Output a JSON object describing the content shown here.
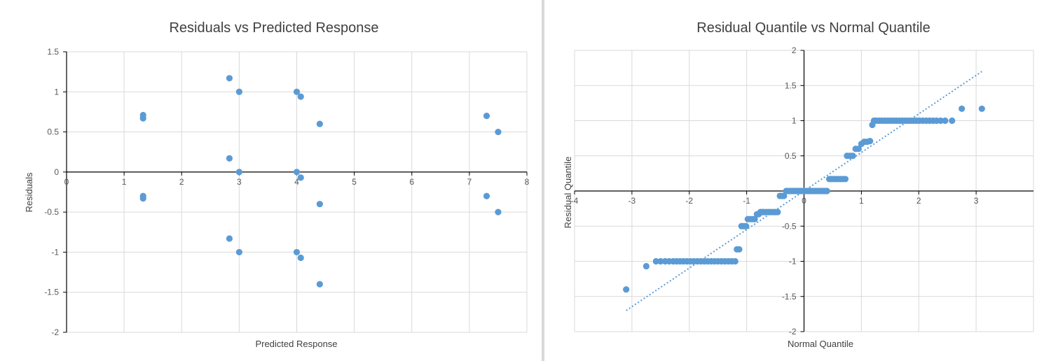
{
  "chart_data": [
    {
      "type": "scatter",
      "title": "Residuals vs Predicted Response",
      "xlabel": "Predicted Response",
      "ylabel": "Residuals",
      "xlim": [
        0,
        8
      ],
      "ylim": [
        -2,
        1.5
      ],
      "xticks": [
        0,
        1,
        2,
        3,
        4,
        5,
        6,
        7,
        8
      ],
      "yticks": [
        -2,
        -1.5,
        -1,
        -0.5,
        0,
        0.5,
        1,
        1.5
      ],
      "xtick_labels": [
        "0",
        "1",
        "2",
        "3",
        "4",
        "5",
        "6",
        "7",
        "8"
      ],
      "ytick_labels": [
        "-2",
        "-1.5",
        "-1",
        "-0.5",
        "0",
        "0.5",
        "1",
        "1.5"
      ],
      "grid": true,
      "legend": "none",
      "marker_color": "#5b9bd5",
      "series": [
        {
          "x": [
            1.33,
            1.33,
            1.33,
            1.33,
            2.83,
            2.83,
            2.83,
            3.0,
            3.0,
            3.0,
            4.0,
            4.0,
            4.0,
            4.07,
            4.07,
            4.07,
            4.4,
            4.4,
            4.4,
            7.3,
            7.3,
            7.5,
            7.5
          ],
          "y": [
            0.71,
            0.67,
            -0.3,
            -0.33,
            1.17,
            0.17,
            -0.83,
            1.0,
            0.0,
            -1.0,
            1.0,
            0.0,
            -1.0,
            0.94,
            -0.07,
            -1.07,
            0.6,
            -0.4,
            -1.4,
            0.7,
            -0.3,
            0.5,
            -0.5
          ]
        }
      ]
    },
    {
      "type": "scatter",
      "title": "Residual Quantile vs Normal Quantile",
      "xlabel": "Normal Quantile",
      "ylabel": "Residual Quantile",
      "xlim": [
        -4,
        4
      ],
      "ylim": [
        -2,
        2
      ],
      "xticks": [
        -4,
        -3,
        -2,
        -1,
        0,
        1,
        2,
        3
      ],
      "yticks": [
        -2,
        -1.5,
        -1,
        -0.5,
        0,
        0.5,
        1,
        1.5,
        2
      ],
      "xtick_labels": [
        "-4",
        "-3",
        "-2",
        "-1",
        "0",
        "1",
        "2",
        "3"
      ],
      "ytick_labels": [
        "-2",
        "-1.5",
        "-1",
        "-0.5",
        "0",
        "0.5",
        "1",
        "1.5",
        "2"
      ],
      "grid": true,
      "legend": "none",
      "marker_color": "#5b9bd5",
      "trendline": {
        "style": "dotted",
        "x": [
          -3.1,
          3.1
        ],
        "y": [
          -1.7,
          1.7
        ]
      },
      "series": [
        {
          "x": [
            -3.1,
            -2.75,
            -2.58,
            -2.5,
            -2.42,
            -2.35,
            -2.28,
            -2.22,
            -2.16,
            -2.1,
            -2.04,
            -1.98,
            -1.92,
            -1.86,
            -1.8,
            -1.74,
            -1.68,
            -1.62,
            -1.56,
            -1.5,
            -1.44,
            -1.38,
            -1.32,
            -1.26,
            -1.2,
            -1.17,
            -1.13,
            -1.09,
            -1.05,
            -1.01,
            -0.98,
            -0.94,
            -0.9,
            -0.86,
            -0.82,
            -0.79,
            -0.76,
            -0.73,
            -0.7,
            -0.66,
            -0.62,
            -0.58,
            -0.54,
            -0.5,
            -0.46,
            -0.42,
            -0.38,
            -0.35,
            -0.31,
            -0.27,
            -0.23,
            -0.19,
            -0.15,
            -0.11,
            -0.07,
            -0.04,
            0.0,
            0.04,
            0.08,
            0.12,
            0.16,
            0.2,
            0.24,
            0.28,
            0.32,
            0.36,
            0.4,
            0.44,
            0.48,
            0.52,
            0.56,
            0.6,
            0.64,
            0.68,
            0.72,
            0.75,
            0.8,
            0.85,
            0.9,
            0.95,
            1.0,
            1.05,
            1.1,
            1.15,
            1.19,
            1.22,
            1.26,
            1.31,
            1.36,
            1.41,
            1.46,
            1.51,
            1.56,
            1.61,
            1.66,
            1.71,
            1.76,
            1.81,
            1.86,
            1.91,
            1.96,
            2.01,
            2.07,
            2.13,
            2.19,
            2.25,
            2.31,
            2.38,
            2.46,
            2.58,
            2.75,
            3.1
          ],
          "y": [
            -1.4,
            -1.07,
            -1.0,
            -1.0,
            -1.0,
            -1.0,
            -1.0,
            -1.0,
            -1.0,
            -1.0,
            -1.0,
            -1.0,
            -1.0,
            -1.0,
            -1.0,
            -1.0,
            -1.0,
            -1.0,
            -1.0,
            -1.0,
            -1.0,
            -1.0,
            -1.0,
            -1.0,
            -1.0,
            -0.83,
            -0.83,
            -0.5,
            -0.5,
            -0.5,
            -0.4,
            -0.4,
            -0.4,
            -0.4,
            -0.33,
            -0.33,
            -0.3,
            -0.3,
            -0.3,
            -0.3,
            -0.3,
            -0.3,
            -0.3,
            -0.3,
            -0.3,
            -0.07,
            -0.07,
            -0.07,
            0.0,
            0.0,
            0.0,
            0.0,
            0.0,
            0.0,
            0.0,
            0.0,
            0.0,
            0.0,
            0.0,
            0.0,
            0.0,
            0.0,
            0.0,
            0.0,
            0.0,
            0.0,
            0.0,
            0.17,
            0.17,
            0.17,
            0.17,
            0.17,
            0.17,
            0.17,
            0.17,
            0.5,
            0.5,
            0.5,
            0.6,
            0.6,
            0.67,
            0.7,
            0.7,
            0.71,
            0.94,
            1.0,
            1.0,
            1.0,
            1.0,
            1.0,
            1.0,
            1.0,
            1.0,
            1.0,
            1.0,
            1.0,
            1.0,
            1.0,
            1.0,
            1.0,
            1.0,
            1.0,
            1.0,
            1.0,
            1.0,
            1.0,
            1.0,
            1.0,
            1.0,
            1.0,
            1.17,
            1.17
          ]
        }
      ]
    }
  ]
}
